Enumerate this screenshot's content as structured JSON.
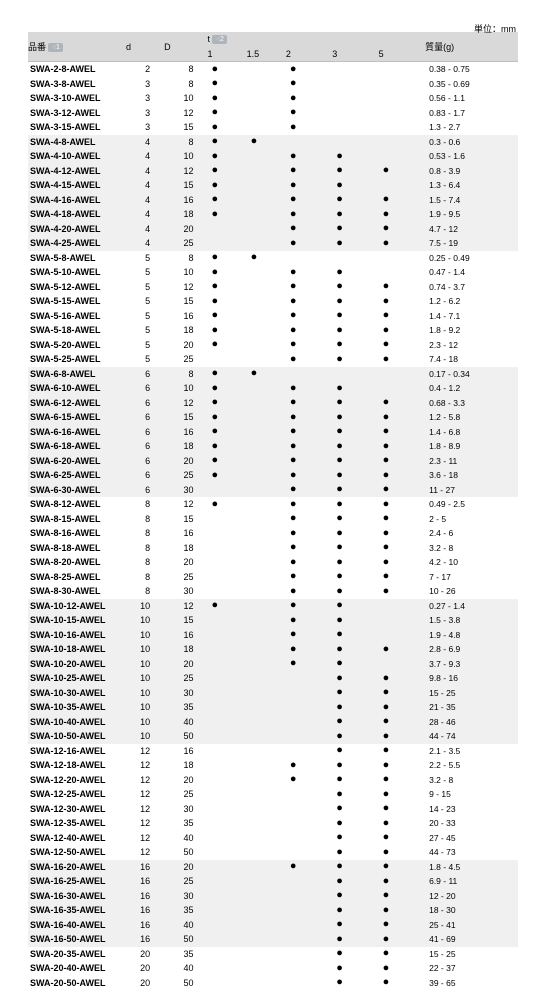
{
  "meta": {
    "unit": "単位：mm"
  },
  "header": {
    "part": "品番",
    "d": "d",
    "D": "D",
    "t": "t",
    "t1": "1",
    "t15": "1.5",
    "t2": "2",
    "t3": "3",
    "t5": "5",
    "weight": "質量(g)",
    "tag1": "1",
    "tag2": "2"
  },
  "rows": [
    {
      "p": "SWA-2-8-AWEL",
      "d": 2,
      "D": 8,
      "t1": 1,
      "t2": 1,
      "w": "0.38 -  0.75",
      "g": 0
    },
    {
      "p": "SWA-3-8-AWEL",
      "d": 3,
      "D": 8,
      "t1": 1,
      "t2": 1,
      "w": "0.35 -  0.69",
      "g": 0
    },
    {
      "p": "SWA-3-10-AWEL",
      "d": 3,
      "D": 10,
      "t1": 1,
      "t2": 1,
      "w": "0.56 -  1.1",
      "g": 0
    },
    {
      "p": "SWA-3-12-AWEL",
      "d": 3,
      "D": 12,
      "t1": 1,
      "t2": 1,
      "w": "0.83 -  1.7",
      "g": 0
    },
    {
      "p": "SWA-3-15-AWEL",
      "d": 3,
      "D": 15,
      "t1": 1,
      "t2": 1,
      "w": "1.3   -  2.7",
      "g": 0
    },
    {
      "p": "SWA-4-8-AWEL",
      "d": 4,
      "D": 8,
      "t1": 1,
      "t15": 1,
      "w": "0.3   -  0.6",
      "g": 1
    },
    {
      "p": "SWA-4-10-AWEL",
      "d": 4,
      "D": 10,
      "t1": 1,
      "t2": 1,
      "t3": 1,
      "w": "0.53 -  1.6",
      "g": 1
    },
    {
      "p": "SWA-4-12-AWEL",
      "d": 4,
      "D": 12,
      "t1": 1,
      "t2": 1,
      "t3": 1,
      "t5": 1,
      "w": "0.8   -  3.9",
      "g": 1
    },
    {
      "p": "SWA-4-15-AWEL",
      "d": 4,
      "D": 15,
      "t1": 1,
      "t2": 1,
      "t3": 1,
      "w": "1.3   -  6.4",
      "g": 1
    },
    {
      "p": "SWA-4-16-AWEL",
      "d": 4,
      "D": 16,
      "t1": 1,
      "t2": 1,
      "t3": 1,
      "t5": 1,
      "w": "1.5   -  7.4",
      "g": 1
    },
    {
      "p": "SWA-4-18-AWEL",
      "d": 4,
      "D": 18,
      "t1": 1,
      "t2": 1,
      "t3": 1,
      "t5": 1,
      "w": "1.9   -  9.5",
      "g": 1
    },
    {
      "p": "SWA-4-20-AWEL",
      "d": 4,
      "D": 20,
      "t2": 1,
      "t3": 1,
      "t5": 1,
      "w": "4.7   - 12",
      "g": 1
    },
    {
      "p": "SWA-4-25-AWEL",
      "d": 4,
      "D": 25,
      "t2": 1,
      "t3": 1,
      "t5": 1,
      "w": "7.5   - 19",
      "g": 1
    },
    {
      "p": "SWA-5-8-AWEL",
      "d": 5,
      "D": 8,
      "t1": 1,
      "t15": 1,
      "w": "0.25 -  0.49",
      "g": 2
    },
    {
      "p": "SWA-5-10-AWEL",
      "d": 5,
      "D": 10,
      "t1": 1,
      "t2": 1,
      "t3": 1,
      "w": "0.47 -  1.4",
      "g": 2
    },
    {
      "p": "SWA-5-12-AWEL",
      "d": 5,
      "D": 12,
      "t1": 1,
      "t2": 1,
      "t3": 1,
      "t5": 1,
      "w": "0.74 -  3.7",
      "g": 2
    },
    {
      "p": "SWA-5-15-AWEL",
      "d": 5,
      "D": 15,
      "t1": 1,
      "t2": 1,
      "t3": 1,
      "t5": 1,
      "w": "1.2   -  6.2",
      "g": 2
    },
    {
      "p": "SWA-5-16-AWEL",
      "d": 5,
      "D": 16,
      "t1": 1,
      "t2": 1,
      "t3": 1,
      "t5": 1,
      "w": "1.4   -  7.1",
      "g": 2
    },
    {
      "p": "SWA-5-18-AWEL",
      "d": 5,
      "D": 18,
      "t1": 1,
      "t2": 1,
      "t3": 1,
      "t5": 1,
      "w": "1.8   -  9.2",
      "g": 2
    },
    {
      "p": "SWA-5-20-AWEL",
      "d": 5,
      "D": 20,
      "t1": 1,
      "t2": 1,
      "t3": 1,
      "t5": 1,
      "w": "2.3   - 12",
      "g": 2
    },
    {
      "p": "SWA-5-25-AWEL",
      "d": 5,
      "D": 25,
      "t2": 1,
      "t3": 1,
      "t5": 1,
      "w": "7.4   - 18",
      "g": 2
    },
    {
      "p": "SWA-6-8-AWEL",
      "d": 6,
      "D": 8,
      "t1": 1,
      "t15": 1,
      "w": "0.17 -  0.34",
      "g": 3
    },
    {
      "p": "SWA-6-10-AWEL",
      "d": 6,
      "D": 10,
      "t1": 1,
      "t2": 1,
      "t3": 1,
      "w": "0.4   -  1.2",
      "g": 3
    },
    {
      "p": "SWA-6-12-AWEL",
      "d": 6,
      "D": 12,
      "t1": 1,
      "t2": 1,
      "t3": 1,
      "t5": 1,
      "w": "0.68 -  3.3",
      "g": 3
    },
    {
      "p": "SWA-6-15-AWEL",
      "d": 6,
      "D": 15,
      "t1": 1,
      "t2": 1,
      "t3": 1,
      "t5": 1,
      "w": "1.2   -  5.8",
      "g": 3
    },
    {
      "p": "SWA-6-16-AWEL",
      "d": 6,
      "D": 16,
      "t1": 1,
      "t2": 1,
      "t3": 1,
      "t5": 1,
      "w": "1.4   -  6.8",
      "g": 3
    },
    {
      "p": "SWA-6-18-AWEL",
      "d": 6,
      "D": 18,
      "t1": 1,
      "t2": 1,
      "t3": 1,
      "t5": 1,
      "w": "1.8   -  8.9",
      "g": 3
    },
    {
      "p": "SWA-6-20-AWEL",
      "d": 6,
      "D": 20,
      "t1": 1,
      "t2": 1,
      "t3": 1,
      "t5": 1,
      "w": "2.3   - 11",
      "g": 3
    },
    {
      "p": "SWA-6-25-AWEL",
      "d": 6,
      "D": 25,
      "t1": 1,
      "t2": 1,
      "t3": 1,
      "t5": 1,
      "w": "3.6   - 18",
      "g": 3
    },
    {
      "p": "SWA-6-30-AWEL",
      "d": 6,
      "D": 30,
      "t2": 1,
      "t3": 1,
      "t5": 1,
      "w": "11    - 27",
      "g": 3
    },
    {
      "p": "SWA-8-12-AWEL",
      "d": 8,
      "D": 12,
      "t1": 1,
      "t2": 1,
      "t3": 1,
      "t5": 1,
      "w": "0.49 -  2.5",
      "g": 4
    },
    {
      "p": "SWA-8-15-AWEL",
      "d": 8,
      "D": 15,
      "t2": 1,
      "t3": 1,
      "t5": 1,
      "w": "2      -   5",
      "g": 4
    },
    {
      "p": "SWA-8-16-AWEL",
      "d": 8,
      "D": 16,
      "t2": 1,
      "t3": 1,
      "t5": 1,
      "w": "2.4   -   6",
      "g": 4
    },
    {
      "p": "SWA-8-18-AWEL",
      "d": 8,
      "D": 18,
      "t2": 1,
      "t3": 1,
      "t5": 1,
      "w": "3.2   -   8",
      "g": 4
    },
    {
      "p": "SWA-8-20-AWEL",
      "d": 8,
      "D": 20,
      "t2": 1,
      "t3": 1,
      "t5": 1,
      "w": "4.2   - 10",
      "g": 4
    },
    {
      "p": "SWA-8-25-AWEL",
      "d": 8,
      "D": 25,
      "t2": 1,
      "t3": 1,
      "t5": 1,
      "w": "7      - 17",
      "g": 4
    },
    {
      "p": "SWA-8-30-AWEL",
      "d": 8,
      "D": 30,
      "t2": 1,
      "t3": 1,
      "t5": 1,
      "w": "10    - 26",
      "g": 4
    },
    {
      "p": "SWA-10-12-AWEL",
      "d": 10,
      "D": 12,
      "t1": 1,
      "t2": 1,
      "t3": 1,
      "w": "0.27 -  1.4",
      "g": 5
    },
    {
      "p": "SWA-10-15-AWEL",
      "d": 10,
      "D": 15,
      "t2": 1,
      "t3": 1,
      "w": "1.5   -  3.8",
      "g": 5
    },
    {
      "p": "SWA-10-16-AWEL",
      "d": 10,
      "D": 16,
      "t2": 1,
      "t3": 1,
      "w": "1.9   -  4.8",
      "g": 5
    },
    {
      "p": "SWA-10-18-AWEL",
      "d": 10,
      "D": 18,
      "t2": 1,
      "t3": 1,
      "t5": 1,
      "w": "2.8   -  6.9",
      "g": 5
    },
    {
      "p": "SWA-10-20-AWEL",
      "d": 10,
      "D": 20,
      "t2": 1,
      "t3": 1,
      "w": "3.7   -  9.3",
      "g": 5
    },
    {
      "p": "SWA-10-25-AWEL",
      "d": 10,
      "D": 25,
      "t3": 1,
      "t5": 1,
      "w": "9.8   - 16",
      "g": 5
    },
    {
      "p": "SWA-10-30-AWEL",
      "d": 10,
      "D": 30,
      "t3": 1,
      "t5": 1,
      "w": "15    - 25",
      "g": 5
    },
    {
      "p": "SWA-10-35-AWEL",
      "d": 10,
      "D": 35,
      "t3": 1,
      "t5": 1,
      "w": "21    - 35",
      "g": 5
    },
    {
      "p": "SWA-10-40-AWEL",
      "d": 10,
      "D": 40,
      "t3": 1,
      "t5": 1,
      "w": "28    - 46",
      "g": 5
    },
    {
      "p": "SWA-10-50-AWEL",
      "d": 10,
      "D": 50,
      "t3": 1,
      "t5": 1,
      "w": "44    - 74",
      "g": 5
    },
    {
      "p": "SWA-12-16-AWEL",
      "d": 12,
      "D": 16,
      "t3": 1,
      "t5": 1,
      "w": "  2.1  -  3.5",
      "g": 6
    },
    {
      "p": "SWA-12-18-AWEL",
      "d": 12,
      "D": 18,
      "t2": 1,
      "t3": 1,
      "t5": 1,
      "w": "  2.2  -  5.5",
      "g": 6
    },
    {
      "p": "SWA-12-20-AWEL",
      "d": 12,
      "D": 20,
      "t2": 1,
      "t3": 1,
      "t5": 1,
      "w": "  3.2  -   8",
      "g": 6
    },
    {
      "p": "SWA-12-25-AWEL",
      "d": 12,
      "D": 25,
      "t3": 1,
      "t5": 1,
      "w": "  9    - 15",
      "g": 6
    },
    {
      "p": "SWA-12-30-AWEL",
      "d": 12,
      "D": 30,
      "t3": 1,
      "t5": 1,
      "w": "14    - 23",
      "g": 6
    },
    {
      "p": "SWA-12-35-AWEL",
      "d": 12,
      "D": 35,
      "t3": 1,
      "t5": 1,
      "w": "20    - 33",
      "g": 6
    },
    {
      "p": "SWA-12-40-AWEL",
      "d": 12,
      "D": 40,
      "t3": 1,
      "t5": 1,
      "w": "27    - 45",
      "g": 6
    },
    {
      "p": "SWA-12-50-AWEL",
      "d": 12,
      "D": 50,
      "t3": 1,
      "t5": 1,
      "w": "44    - 73",
      "g": 6
    },
    {
      "p": "SWA-16-20-AWEL",
      "d": 16,
      "D": 20,
      "t2": 1,
      "t3": 1,
      "t5": 1,
      "w": "  1.8  -  4.5",
      "g": 7
    },
    {
      "p": "SWA-16-25-AWEL",
      "d": 16,
      "D": 25,
      "t3": 1,
      "t5": 1,
      "w": "  6.9  - 11",
      "g": 7
    },
    {
      "p": "SWA-16-30-AWEL",
      "d": 16,
      "D": 30,
      "t3": 1,
      "t5": 1,
      "w": "12    - 20",
      "g": 7
    },
    {
      "p": "SWA-16-35-AWEL",
      "d": 16,
      "D": 35,
      "t3": 1,
      "t5": 1,
      "w": "18    - 30",
      "g": 7
    },
    {
      "p": "SWA-16-40-AWEL",
      "d": 16,
      "D": 40,
      "t3": 1,
      "t5": 1,
      "w": "25    - 41",
      "g": 7
    },
    {
      "p": "SWA-16-50-AWEL",
      "d": 16,
      "D": 50,
      "t3": 1,
      "t5": 1,
      "w": "41    - 69",
      "g": 7
    },
    {
      "p": "SWA-20-35-AWEL",
      "d": 20,
      "D": 35,
      "t3": 1,
      "t5": 1,
      "w": "15    - 25",
      "g": 8
    },
    {
      "p": "SWA-20-40-AWEL",
      "d": 20,
      "D": 40,
      "t3": 1,
      "t5": 1,
      "w": "22    - 37",
      "g": 8
    },
    {
      "p": "SWA-20-50-AWEL",
      "d": 20,
      "D": 50,
      "t3": 1,
      "t5": 1,
      "w": "39    - 65",
      "g": 8
    }
  ]
}
